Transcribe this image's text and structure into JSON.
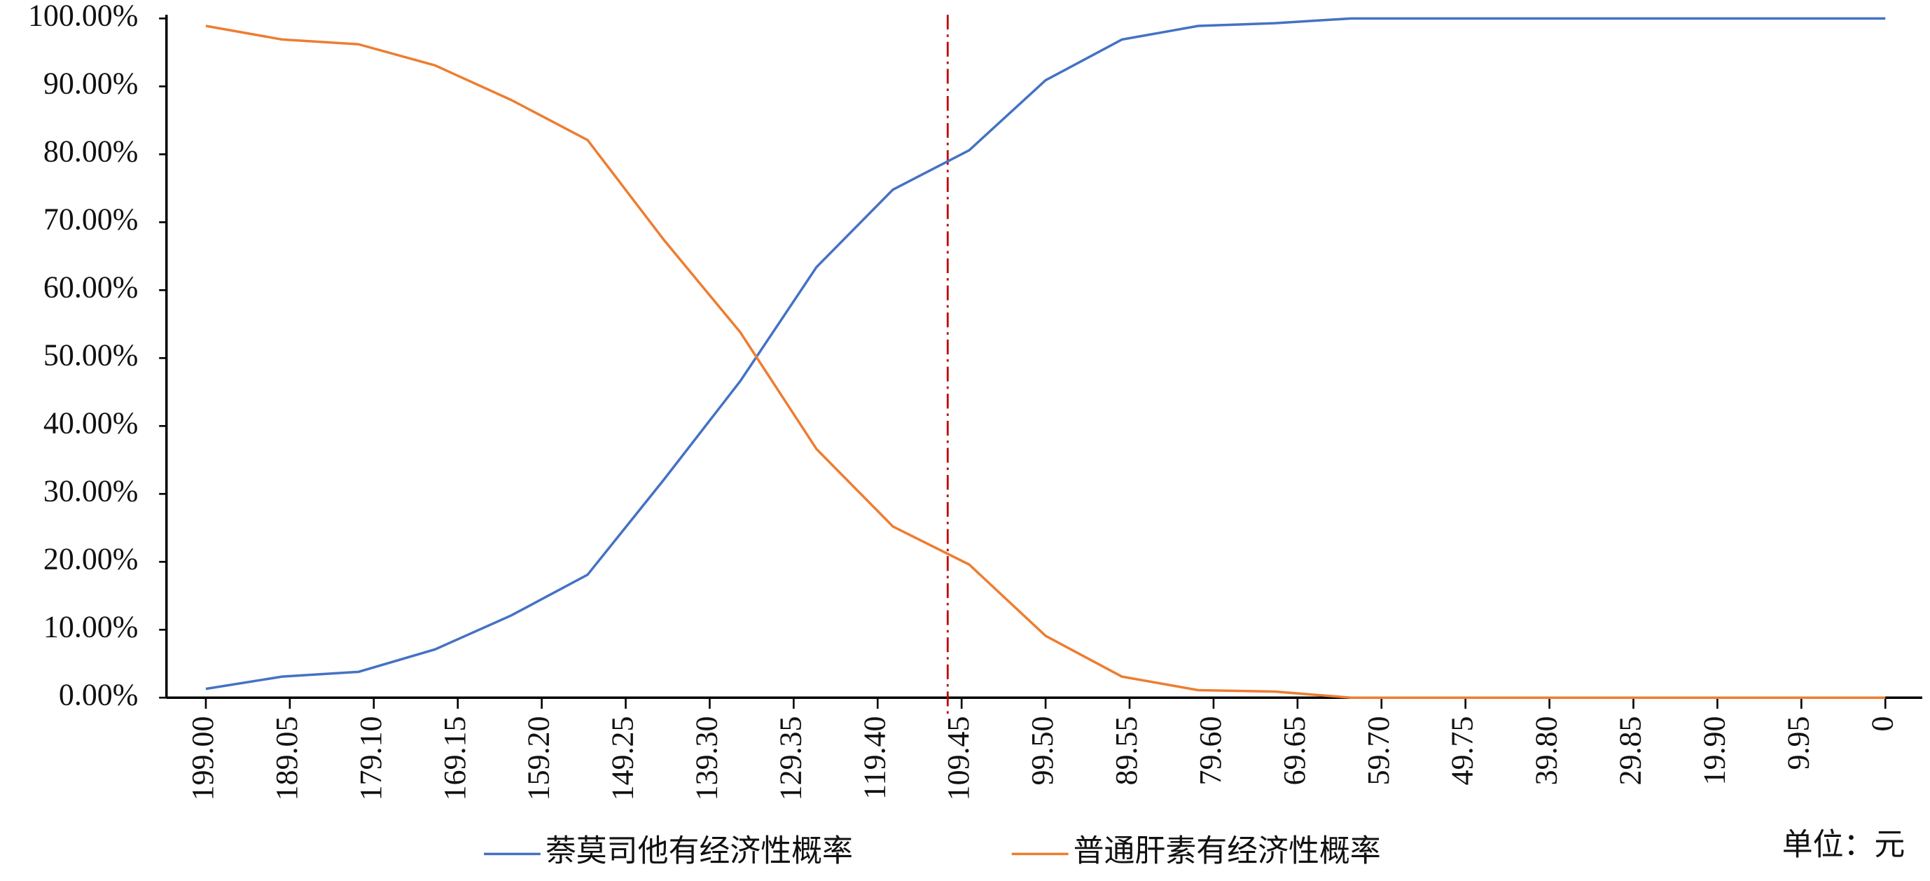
{
  "chart_data": {
    "type": "line",
    "x": [
      199,
      189.95,
      180.91,
      171.86,
      162.82,
      153.77,
      144.73,
      135.68,
      126.64,
      117.59,
      108.55,
      99.5,
      90.45,
      81.41,
      72.36,
      63.32,
      54.27,
      45.23,
      36.18,
      27.14,
      18.09,
      9.05,
      0
    ],
    "series": [
      {
        "name": "萘莫司他有经济性概率",
        "color": "#4472c4",
        "values": [
          1.3,
          3.1,
          3.8,
          7.1,
          12.1,
          18.1,
          32.1,
          46.6,
          63.4,
          74.8,
          80.6,
          90.9,
          96.9,
          98.9,
          99.3,
          100,
          100,
          100,
          100,
          100,
          100,
          100,
          100
        ]
      },
      {
        "name": "普通肝素有经济性概率",
        "color": "#ed7d31",
        "values": [
          98.9,
          96.9,
          96.2,
          93.1,
          88.0,
          82.1,
          67.4,
          53.8,
          36.6,
          25.2,
          19.6,
          9.1,
          3.1,
          1.1,
          0.9,
          0,
          0,
          0,
          0,
          0,
          0,
          0,
          0
        ]
      }
    ],
    "xlim": [
      199,
      0
    ],
    "xticks": [
      {
        "value": 199,
        "label": "199.00"
      },
      189.05,
      {
        "value": 179.1,
        "label": "179.10"
      },
      169.15,
      {
        "value": 159.2,
        "label": "159.20"
      },
      149.25,
      {
        "value": 139.3,
        "label": "139.30"
      },
      129.35,
      {
        "value": 119.4,
        "label": "119.40"
      },
      109.45,
      {
        "value": 99.5,
        "label": "99.50"
      },
      89.55,
      {
        "value": 79.6,
        "label": "79.60"
      },
      69.65,
      {
        "value": 59.7,
        "label": "59.70"
      },
      49.75,
      {
        "value": 39.8,
        "label": "39.80"
      },
      29.85,
      {
        "value": 19.9,
        "label": "19.90"
      },
      9.95,
      0
    ],
    "ylim": [
      0,
      100
    ],
    "yticks": [
      {
        "value": 0,
        "label": "0.00%"
      },
      {
        "value": 10,
        "label": "10.00%"
      },
      {
        "value": 20,
        "label": "20.00%"
      },
      {
        "value": 30,
        "label": "30.00%"
      },
      {
        "value": 40,
        "label": "40.00%"
      },
      {
        "value": 50,
        "label": "50.00%"
      },
      {
        "value": 60,
        "label": "60.00%"
      },
      {
        "value": 70,
        "label": "70.00%"
      },
      {
        "value": 80,
        "label": "80.00%"
      },
      {
        "value": 90,
        "label": "90.00%"
      },
      {
        "value": 100,
        "label": "100.00%"
      }
    ],
    "reference_x": 111.1,
    "reference_color": "#c00000",
    "grid": false,
    "legend": "bottom",
    "annotation": "单位：元"
  }
}
